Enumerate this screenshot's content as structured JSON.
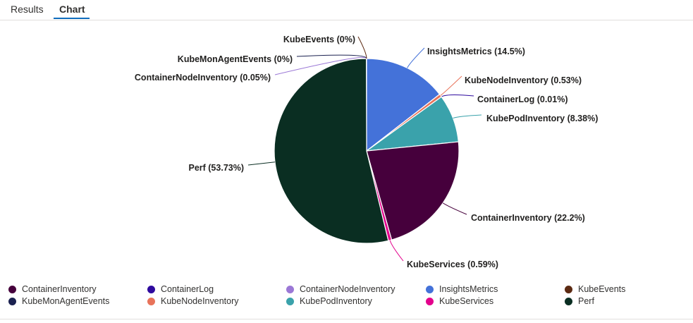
{
  "tabs": [
    {
      "label": "Results",
      "active": false
    },
    {
      "label": "Chart",
      "active": true
    }
  ],
  "colors": {
    "tab_underline": "#0f6cbd"
  },
  "chart_data": {
    "type": "pie",
    "title": "",
    "slices": [
      {
        "name": "InsightsMetrics",
        "value": 14.5,
        "label": "InsightsMetrics (14.5%)",
        "color": "#4472d9"
      },
      {
        "name": "KubeNodeInventory",
        "value": 0.53,
        "label": "KubeNodeInventory (0.53%)",
        "color": "#e8735a"
      },
      {
        "name": "ContainerLog",
        "value": 0.01,
        "label": "ContainerLog (0.01%)",
        "color": "#2e0a9e"
      },
      {
        "name": "KubePodInventory",
        "value": 8.38,
        "label": "KubePodInventory (8.38%)",
        "color": "#3aa2ab"
      },
      {
        "name": "ContainerInventory",
        "value": 22.2,
        "label": "ContainerInventory (22.2%)",
        "color": "#46003c"
      },
      {
        "name": "KubeServices",
        "value": 0.59,
        "label": "KubeServices (0.59%)",
        "color": "#e3008c"
      },
      {
        "name": "Perf",
        "value": 53.73,
        "label": "Perf (53.73%)",
        "color": "#0a2e22"
      },
      {
        "name": "ContainerNodeInventory",
        "value": 0.05,
        "label": "ContainerNodeInventory (0.05%)",
        "color": "#9b78d6"
      },
      {
        "name": "KubeMonAgentEvents",
        "value": 0.0,
        "label": "KubeMonAgentEvents (0%)",
        "color": "#1b2150"
      },
      {
        "name": "KubeEvents",
        "value": 0.0,
        "label": "KubeEvents (0%)",
        "color": "#5c2a12"
      }
    ],
    "legend": {
      "placement": "bottom",
      "items": [
        {
          "name": "ContainerInventory",
          "color": "#46003c"
        },
        {
          "name": "ContainerLog",
          "color": "#2e0a9e"
        },
        {
          "name": "ContainerNodeInventory",
          "color": "#9b78d6"
        },
        {
          "name": "InsightsMetrics",
          "color": "#4472d9"
        },
        {
          "name": "KubeEvents",
          "color": "#5c2a12"
        },
        {
          "name": "KubeMonAgentEvents",
          "color": "#1b2150"
        },
        {
          "name": "KubeNodeInventory",
          "color": "#e8735a"
        },
        {
          "name": "KubePodInventory",
          "color": "#3aa2ab"
        },
        {
          "name": "KubeServices",
          "color": "#e3008c"
        },
        {
          "name": "Perf",
          "color": "#0a2e22"
        }
      ]
    }
  }
}
